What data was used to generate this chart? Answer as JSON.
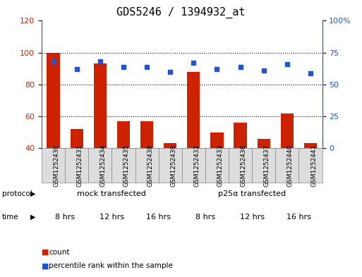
{
  "title": "GDS5246 / 1394932_at",
  "samples": [
    "GSM1252430",
    "GSM1252431",
    "GSM1252434",
    "GSM1252435",
    "GSM1252438",
    "GSM1252439",
    "GSM1252432",
    "GSM1252433",
    "GSM1252436",
    "GSM1252437",
    "GSM1252440",
    "GSM1252441"
  ],
  "counts": [
    100,
    52,
    93,
    57,
    57,
    43,
    88,
    50,
    56,
    46,
    62,
    43
  ],
  "percentiles": [
    68,
    62,
    68,
    64,
    64,
    60,
    67,
    62,
    64,
    61,
    66,
    59
  ],
  "ylim_left": [
    40,
    120
  ],
  "ylim_right": [
    0,
    100
  ],
  "yticks_left": [
    40,
    60,
    80,
    100,
    120
  ],
  "yticks_right": [
    0,
    25,
    50,
    75,
    100
  ],
  "ytick_labels_left": [
    "40",
    "60",
    "80",
    "100",
    "120"
  ],
  "ytick_labels_right": [
    "0",
    "25",
    "50",
    "75",
    "100%"
  ],
  "bar_color": "#cc2200",
  "dot_color": "#2255cc",
  "grid_color": "#000000",
  "bg_color": "#ffffff",
  "plot_bg": "#ffffff",
  "protocol_labels": [
    "mock transfected",
    "p25α transfected"
  ],
  "protocol_color_light": "#aaeebb",
  "protocol_color_dark": "#55cc55",
  "time_colors": [
    "#ffffff",
    "#dd88dd",
    "#bb44bb",
    "#ffffff",
    "#dd88dd",
    "#bb44bb"
  ],
  "time_labels": [
    "8 hrs",
    "12 hrs",
    "16 hrs",
    "8 hrs",
    "12 hrs",
    "16 hrs"
  ],
  "legend_count_label": "count",
  "legend_pct_label": "percentile rank within the sample",
  "title_fontsize": 11,
  "axis_fontsize": 8,
  "tick_fontsize": 7
}
